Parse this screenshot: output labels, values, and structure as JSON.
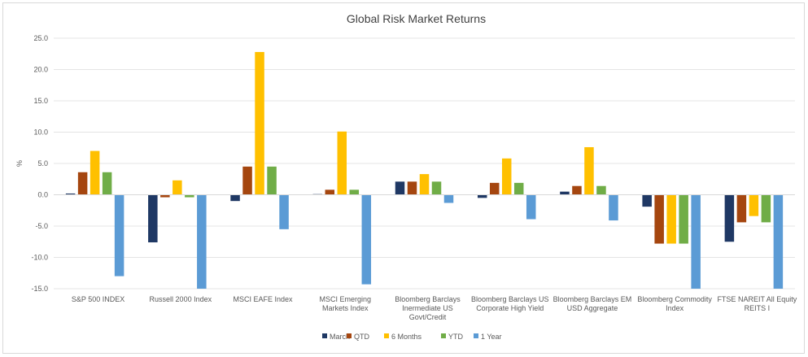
{
  "chart_data": {
    "type": "bar",
    "title": "Global Risk Market Returns",
    "xlabel": "",
    "ylabel": "%",
    "ylim": [
      -15,
      25
    ],
    "yticks": [
      "25.0",
      "20.0",
      "15.0",
      "10.0",
      "5.0",
      "0.0",
      "-5.0",
      "-10.0",
      "-15.0"
    ],
    "grid": true,
    "legend_position": "bottom",
    "categories": [
      [
        "S&P 500 INDEX"
      ],
      [
        "Russell 2000 Index"
      ],
      [
        "MSCI EAFE Index"
      ],
      [
        "MSCI Emerging",
        "Markets Index"
      ],
      [
        "Bloomberg Barclays",
        "Inermediate US",
        "Govt/Credit"
      ],
      [
        "Bloomberg Barclays US",
        "Corporate High Yield"
      ],
      [
        "Bloomberg Barclays EM",
        "USD Aggregate"
      ],
      [
        "Bloomberg Commodity",
        "Index"
      ],
      [
        "FTSE NAREIT All Equity",
        "REITS I"
      ]
    ],
    "series": [
      {
        "name": "March",
        "color": "#1f3864",
        "values": [
          0.2,
          -7.6,
          -1.0,
          0.1,
          2.1,
          -0.5,
          0.5,
          -1.9,
          -7.5
        ]
      },
      {
        "name": "QTD",
        "color": "#a5460f",
        "values": [
          3.6,
          -0.4,
          4.5,
          0.8,
          2.1,
          1.9,
          1.4,
          -7.8,
          -4.4
        ]
      },
      {
        "name": "6 Months",
        "color": "#ffc000",
        "values": [
          7.0,
          2.3,
          22.8,
          10.1,
          3.3,
          5.8,
          7.6,
          -7.8,
          -3.4
        ]
      },
      {
        "name": "YTD",
        "color": "#70ad47",
        "values": [
          3.6,
          -0.4,
          4.5,
          0.8,
          2.1,
          1.9,
          1.4,
          -7.8,
          -4.4
        ]
      },
      {
        "name": "1 Year",
        "color": "#5b9bd5",
        "values": [
          -13.0,
          -15.0,
          -5.5,
          -14.3,
          -1.3,
          -3.9,
          -4.1,
          -15.0,
          -15.0
        ]
      }
    ]
  }
}
